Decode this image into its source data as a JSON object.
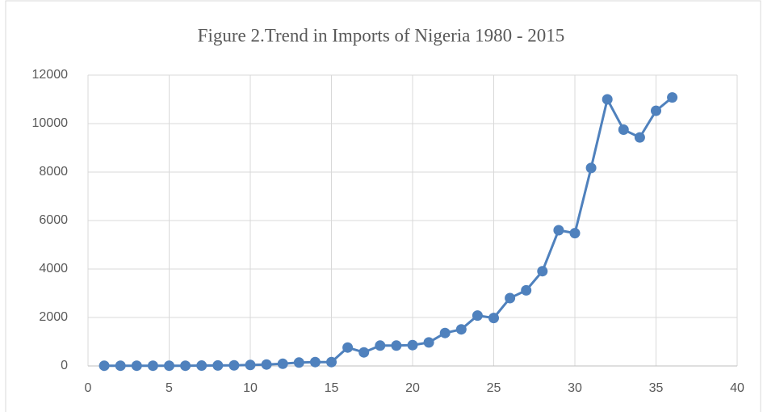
{
  "chart_data": {
    "type": "line",
    "title": "Figure 2.Trend in Imports of Nigeria 1980 - 2015",
    "x": [
      1,
      2,
      3,
      4,
      5,
      6,
      7,
      8,
      9,
      10,
      11,
      12,
      13,
      14,
      15,
      16,
      17,
      18,
      19,
      20,
      21,
      22,
      23,
      24,
      25,
      26,
      27,
      28,
      29,
      30,
      31,
      32,
      33,
      34,
      35,
      36
    ],
    "series": [
      {
        "color": "#4f81bd",
        "values": [
          10,
          10,
          10,
          10,
          10,
          10,
          15,
          20,
          25,
          40,
          60,
          90,
          140,
          160,
          160,
          760,
          560,
          840,
          840,
          860,
          970,
          1360,
          1510,
          2080,
          1980,
          2800,
          3120,
          3910,
          5600,
          5480,
          8170,
          11000,
          9750,
          9430,
          10530,
          11080
        ]
      }
    ],
    "xlim": [
      0,
      40
    ],
    "xticks": [
      0,
      5,
      10,
      15,
      20,
      25,
      30,
      35,
      40
    ],
    "ylim": [
      0,
      12000
    ],
    "yticks": [
      0,
      2000,
      4000,
      6000,
      8000,
      10000,
      12000
    ],
    "grid": true
  }
}
